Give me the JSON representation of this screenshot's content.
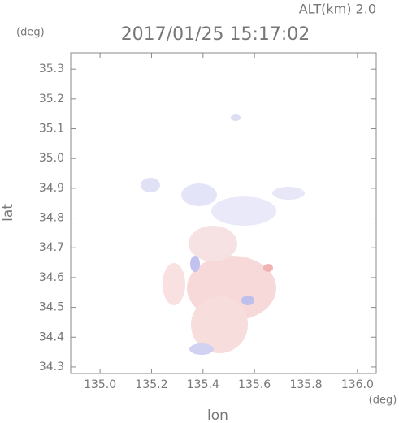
{
  "chart_data": {
    "type": "map",
    "altitude_label": "ALT(km) 2.0",
    "title": "2017/01/25 15:17:02",
    "y_unit": "(deg)",
    "x_unit": "(deg)",
    "ylabel": "lat",
    "xlabel": "lon",
    "xlim": [
      134.886,
      136.073
    ],
    "ylim": [
      34.278,
      35.355
    ],
    "xticks": [
      {
        "value": 135.0,
        "label": "135.0"
      },
      135.2,
      135.4,
      135.6,
      135.8,
      {
        "value": 136.0,
        "label": "136.0"
      }
    ],
    "yticks": [
      34.3,
      34.4,
      34.5,
      34.6,
      34.7,
      34.8,
      34.9,
      {
        "value": 35.0,
        "label": "35.0"
      },
      35.1,
      35.2,
      35.3
    ]
  }
}
